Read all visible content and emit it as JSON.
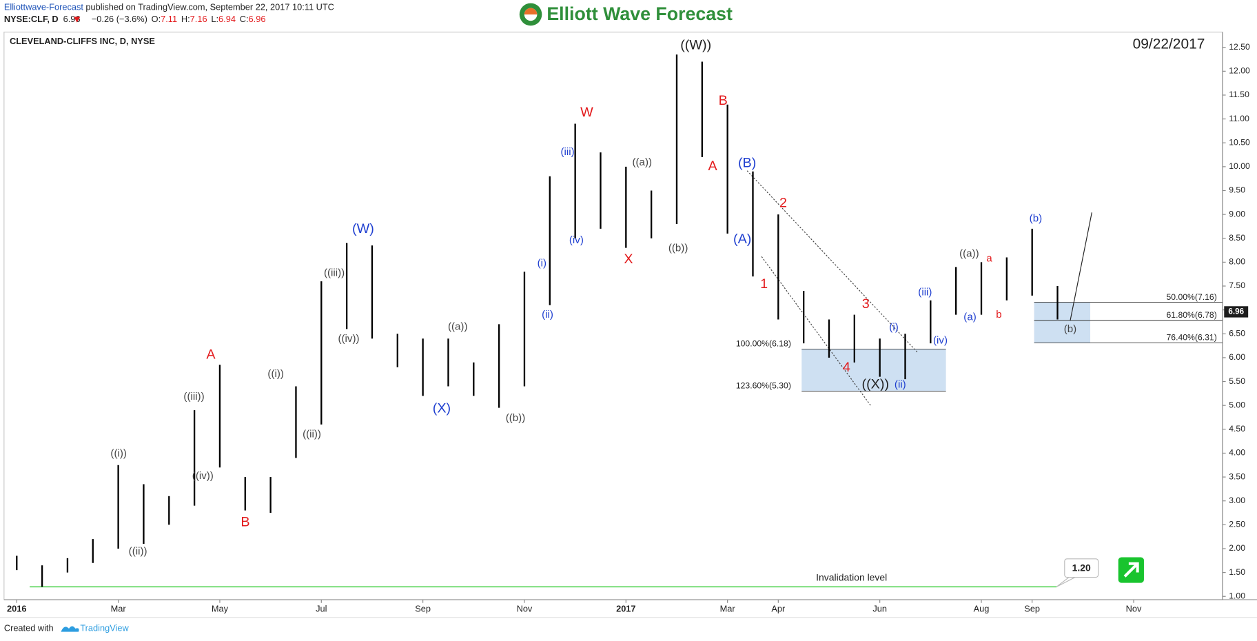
{
  "header": {
    "author": "Elliottwave-Forecast",
    "published": "published on TradingView.com, September 22, 2017 10:11 UTC",
    "symbol": "NYSE:CLF, D",
    "last": "6.96",
    "change": "−0.26 (−3.6%)",
    "quote": [
      {
        "key": "O:",
        "value": "7.11"
      },
      {
        "key": "H:",
        "value": "7.16"
      },
      {
        "key": "L:",
        "value": "6.94"
      },
      {
        "key": "C:",
        "value": "6.96"
      }
    ]
  },
  "brand": "Elliott Wave Forecast",
  "footer": {
    "created": "Created with",
    "platform": "TradingView"
  },
  "chart_data": {
    "type": "ohlc",
    "title": "CLEVELAND-CLIFFS INC, D, NYSE",
    "date_label": "09/22/2017",
    "color": "#000000",
    "categories": [
      "2016",
      null,
      null,
      null,
      "Mar",
      null,
      null,
      null,
      "May",
      null,
      null,
      null,
      "Jul",
      null,
      null,
      null,
      "Sep",
      null,
      null,
      null,
      "Nov",
      null,
      null,
      null,
      "2017",
      null,
      null,
      null,
      "Mar",
      null,
      "Apr",
      null,
      null,
      null,
      "Jun",
      null,
      null,
      null,
      "Aug",
      null,
      "Sep",
      null,
      null,
      null,
      "Nov",
      null,
      null,
      null
    ],
    "high": [
      1.85,
      1.65,
      1.8,
      2.2,
      3.75,
      3.35,
      3.1,
      4.9,
      5.85,
      3.5,
      3.5,
      5.4,
      7.6,
      8.4,
      8.35,
      6.5,
      6.4,
      6.4,
      5.9,
      6.7,
      7.8,
      9.8,
      10.9,
      10.3,
      10.0,
      9.5,
      12.35,
      12.2,
      11.3,
      9.9,
      9.0,
      7.4,
      6.8,
      6.9,
      6.4,
      6.5,
      7.2,
      7.9,
      8.0,
      8.1,
      8.7,
      7.5,
      null,
      null,
      null,
      null,
      null,
      null
    ],
    "low": [
      1.55,
      1.2,
      1.5,
      1.7,
      2.0,
      2.1,
      2.5,
      2.9,
      3.7,
      2.8,
      2.75,
      3.9,
      4.6,
      6.6,
      6.4,
      5.8,
      5.2,
      5.4,
      5.2,
      4.95,
      5.4,
      7.1,
      8.5,
      8.7,
      8.3,
      8.5,
      8.8,
      10.2,
      8.6,
      7.7,
      6.8,
      6.3,
      6.0,
      5.9,
      5.6,
      5.55,
      6.3,
      6.9,
      6.9,
      7.2,
      7.3,
      6.8,
      null,
      null,
      null,
      null,
      null,
      null
    ],
    "ylim": [
      0.93,
      12.82
    ],
    "yticks": [
      {
        "value": 1,
        "label": "1.00"
      },
      {
        "value": 1.5,
        "label": "1.50"
      },
      {
        "value": 2,
        "label": "2.00"
      },
      {
        "value": 2.5,
        "label": "2.50"
      },
      {
        "value": 3,
        "label": "3.00"
      },
      {
        "value": 3.5,
        "label": "3.50"
      },
      {
        "value": 4,
        "label": "4.00"
      },
      {
        "value": 4.5,
        "label": "4.50"
      },
      {
        "value": 5,
        "label": "5.00"
      },
      {
        "value": 5.5,
        "label": "5.50"
      },
      {
        "value": 6,
        "label": "6.00"
      },
      {
        "value": 6.5,
        "label": "6.50"
      },
      {
        "value": 7,
        "label": "7.00"
      },
      {
        "value": 7.5,
        "label": "7.50"
      },
      {
        "value": 8,
        "label": "8.00"
      },
      {
        "value": 8.5,
        "label": "8.50"
      },
      {
        "value": 9,
        "label": "9.00"
      },
      {
        "value": 9.5,
        "label": "9.50"
      },
      {
        "value": 10,
        "label": "10.00"
      },
      {
        "value": 10.5,
        "label": "10.50"
      },
      {
        "value": 11,
        "label": "11.00"
      },
      {
        "value": 11.5,
        "label": "11.50"
      },
      {
        "value": 12,
        "label": "12.00"
      },
      {
        "value": 12.5,
        "label": "12.50"
      }
    ],
    "last_price": 6.96,
    "invalidation": {
      "label": "Invalidation level",
      "value": 1.2,
      "value_label": "1.20",
      "color": "#33cc33"
    },
    "fib_color": "#c6dbf0",
    "fib_levels": [
      {
        "label": "100.00%(6.18)",
        "value": 6.18
      },
      {
        "label": "123.60%(5.30)",
        "value": 5.3
      },
      {
        "label": "50.00%(7.16)",
        "value": 7.16
      },
      {
        "label": "61.80%(6.78)",
        "value": 6.78
      },
      {
        "label": "76.40%(6.31)",
        "value": 6.31
      }
    ],
    "wave_labels": [
      {
        "text": "((i))",
        "color": "#444444"
      },
      {
        "text": "((ii))",
        "color": "#444444"
      },
      {
        "text": "((iii))",
        "color": "#444444"
      },
      {
        "text": "((iv))",
        "color": "#444444"
      },
      {
        "text": "A",
        "color": "#e31a1c"
      },
      {
        "text": "B",
        "color": "#e31a1c"
      },
      {
        "text": "((i))",
        "color": "#444444"
      },
      {
        "text": "((ii))",
        "color": "#444444"
      },
      {
        "text": "((iii))",
        "color": "#444444"
      },
      {
        "text": "((iv))",
        "color": "#444444"
      },
      {
        "text": "(W)",
        "color": "#1f3fd0"
      },
      {
        "text": "((a))",
        "color": "#444444"
      },
      {
        "text": "(X)",
        "color": "#1f3fd0"
      },
      {
        "text": "((b))",
        "color": "#444444"
      },
      {
        "text": "(i)",
        "color": "#1f3fd0"
      },
      {
        "text": "(ii)",
        "color": "#1f3fd0"
      },
      {
        "text": "(iii)",
        "color": "#1f3fd0"
      },
      {
        "text": "(iv)",
        "color": "#1f3fd0"
      },
      {
        "text": "W",
        "color": "#e31a1c"
      },
      {
        "text": "X",
        "color": "#e31a1c"
      },
      {
        "text": "((a))",
        "color": "#444444"
      },
      {
        "text": "((b))",
        "color": "#444444"
      },
      {
        "text": "((W))",
        "color": "#222222"
      },
      {
        "text": "B",
        "color": "#e31a1c"
      },
      {
        "text": "A",
        "color": "#e31a1c"
      },
      {
        "text": "(B)",
        "color": "#1f3fd0"
      },
      {
        "text": "(A)",
        "color": "#1f3fd0"
      },
      {
        "text": "2",
        "color": "#e31a1c"
      },
      {
        "text": "1",
        "color": "#e31a1c"
      },
      {
        "text": "3",
        "color": "#e31a1c"
      },
      {
        "text": "4",
        "color": "#e31a1c"
      },
      {
        "text": "(i)",
        "color": "#1f3fd0"
      },
      {
        "text": "((X))",
        "color": "#222222"
      },
      {
        "text": "(ii)",
        "color": "#1f3fd0"
      },
      {
        "text": "(iii)",
        "color": "#1f3fd0"
      },
      {
        "text": "(iv)",
        "color": "#1f3fd0"
      },
      {
        "text": "((a))",
        "color": "#444444"
      },
      {
        "text": "a",
        "color": "#e31a1c"
      },
      {
        "text": "(a)",
        "color": "#1f3fd0"
      },
      {
        "text": "b",
        "color": "#e31a1c"
      },
      {
        "text": "(b)",
        "color": "#1f3fd0"
      },
      {
        "text": "(b)",
        "color": "#444444"
      }
    ]
  }
}
